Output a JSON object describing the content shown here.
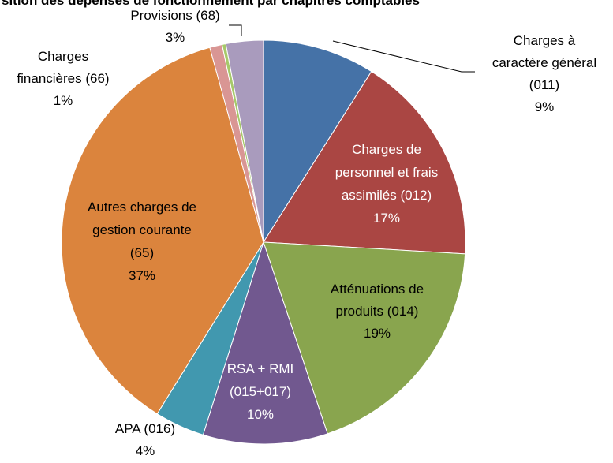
{
  "chart_data": {
    "type": "pie",
    "title": "sition des dépenses de fonctionnement par chapitres comptables",
    "categories": [
      "Charges à\ncaractère général\n(011)",
      "Charges de\npersonnel et frais\nassimilés (012)",
      "Atténuations de\nproduits (014)",
      "RSA + RMI\n(015+017)",
      "APA (016)",
      "Autres charges de\ngestion courante\n(65)",
      "Charges\nfinancières (66)",
      null,
      "Provisions (68)"
    ],
    "values": [
      9,
      17,
      19,
      10,
      4,
      37,
      1,
      0.3,
      3
    ],
    "value_labels": [
      "9%",
      "17%",
      "19%",
      "10%",
      "4%",
      "37%",
      "1%",
      null,
      "3%"
    ],
    "colors": [
      "#4572a7",
      "#aa4643",
      "#89a54e",
      "#71588f",
      "#4198af",
      "#db843d",
      "#d99694",
      "#a6c96a",
      "#a99bbd"
    ]
  }
}
